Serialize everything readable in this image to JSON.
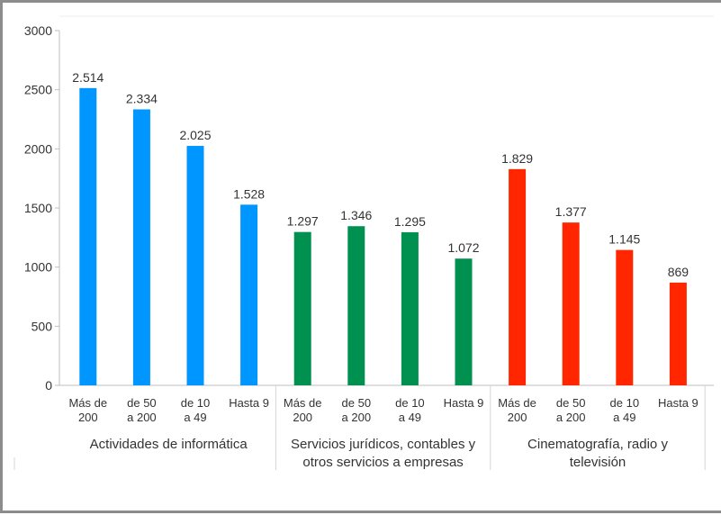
{
  "chart_data": {
    "type": "bar",
    "ylim": [
      0,
      3000
    ],
    "yticks": [
      "0",
      "500",
      "1000",
      "1500",
      "2000",
      "2500",
      "3000"
    ],
    "grid": false,
    "groups": [
      {
        "name": "Actividades de informática",
        "color": "#0096ff",
        "categories": [
          "Más de 200",
          "de 50 a 200",
          "de 10 a 49",
          "Hasta 9"
        ],
        "values": [
          2514,
          2334,
          2025,
          1528
        ],
        "value_labels": [
          "2.514",
          "2.334",
          "2.025",
          "1.528"
        ]
      },
      {
        "name": "Servicios jurídicos, contables y otros servicios a empresas",
        "color": "#009150",
        "categories": [
          "Más de 200",
          "de 50 a 200",
          "de 10 a 49",
          "Hasta 9"
        ],
        "values": [
          1297,
          1346,
          1295,
          1072
        ],
        "value_labels": [
          "1.297",
          "1.346",
          "1.295",
          "1.072"
        ]
      },
      {
        "name": "Cinematografía, radio y televisión",
        "color": "#ff2600",
        "categories": [
          "Más de 200",
          "de 50 a 200",
          "de 10 a 49",
          "Hasta 9"
        ],
        "values": [
          1829,
          1377,
          1145,
          869
        ],
        "value_labels": [
          "1.829",
          "1.377",
          "1.145",
          "869"
        ]
      }
    ]
  }
}
